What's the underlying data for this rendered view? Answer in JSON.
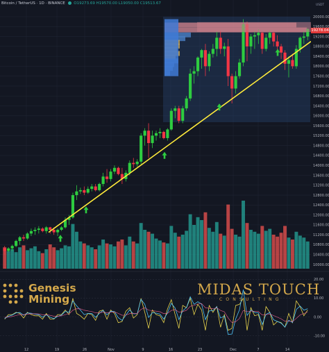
{
  "header": {
    "symbol": "Bitcoin / TetherUS",
    "interval": "1D",
    "exchange": "BINANCE",
    "open": "O19273.69",
    "high": "H19570.00",
    "low": "L19050.00",
    "close": "C19513.67"
  },
  "price_tag": "19278.04",
  "genesis": {
    "line1": "Genesis",
    "line2": "Mining"
  },
  "midas": {
    "title": "MIDAS TOUCH",
    "subtitle": "CONSULTING"
  },
  "colors": {
    "up": "#26a69a",
    "down": "#ef5350",
    "candle_up": "#2ecc40",
    "candle_down": "#f23645",
    "trendline": "#ffeb3b",
    "gold": "#d4a84b",
    "arrow": "#2ecc40"
  },
  "chart_data": {
    "type": "candlestick",
    "title": "Bitcoin / TetherUS, 1D, BINANCE",
    "y_axis": {
      "ticks": [
        "20000.00",
        "19600.00",
        "19200.00",
        "18800.00",
        "18400.00",
        "18000.00",
        "17600.00",
        "17200.00",
        "16800.00",
        "16400.00",
        "16000.00",
        "15600.00",
        "15200.00",
        "14800.00",
        "14400.00",
        "14000.00",
        "13600.00",
        "13200.00",
        "12800.00",
        "12400.00",
        "12000.00",
        "11600.00",
        "11200.00",
        "10800.00",
        "10400.00",
        "10000.00"
      ],
      "range": [
        10000,
        20000
      ]
    },
    "x_axis": {
      "ticks": [
        "12",
        "19",
        "26",
        "Nov",
        "9",
        "16",
        "23",
        "Dec",
        "7",
        "14"
      ]
    },
    "candles": [
      {
        "o": 10650,
        "h": 10750,
        "l": 10400,
        "c": 10550
      },
      {
        "o": 10550,
        "h": 10700,
        "l": 10500,
        "c": 10650
      },
      {
        "o": 10650,
        "h": 10800,
        "l": 10550,
        "c": 10750
      },
      {
        "o": 10750,
        "h": 11000,
        "l": 10700,
        "c": 10950
      },
      {
        "o": 10950,
        "h": 11150,
        "l": 10800,
        "c": 11100
      },
      {
        "o": 11100,
        "h": 11200,
        "l": 10950,
        "c": 11050
      },
      {
        "o": 11050,
        "h": 11300,
        "l": 11000,
        "c": 11250
      },
      {
        "o": 11250,
        "h": 11450,
        "l": 11150,
        "c": 11350
      },
      {
        "o": 11350,
        "h": 11500,
        "l": 11200,
        "c": 11400
      },
      {
        "o": 11400,
        "h": 11550,
        "l": 11250,
        "c": 11450
      },
      {
        "o": 11450,
        "h": 11500,
        "l": 11300,
        "c": 11350
      },
      {
        "o": 11350,
        "h": 11550,
        "l": 11250,
        "c": 11500
      },
      {
        "o": 11500,
        "h": 11520,
        "l": 11250,
        "c": 11400
      },
      {
        "o": 11400,
        "h": 11500,
        "l": 11200,
        "c": 11300
      },
      {
        "o": 11300,
        "h": 11450,
        "l": 11150,
        "c": 11400
      },
      {
        "o": 11400,
        "h": 11550,
        "l": 11350,
        "c": 11500
      },
      {
        "o": 11500,
        "h": 11900,
        "l": 11450,
        "c": 11800
      },
      {
        "o": 11800,
        "h": 12000,
        "l": 11600,
        "c": 11900
      },
      {
        "o": 11900,
        "h": 12900,
        "l": 11850,
        "c": 12800
      },
      {
        "o": 12800,
        "h": 13200,
        "l": 12600,
        "c": 12950
      },
      {
        "o": 12950,
        "h": 13100,
        "l": 12850,
        "c": 13000
      },
      {
        "o": 13000,
        "h": 13150,
        "l": 12800,
        "c": 12900
      },
      {
        "o": 12900,
        "h": 13150,
        "l": 12850,
        "c": 13050
      },
      {
        "o": 13050,
        "h": 13250,
        "l": 12950,
        "c": 13150
      },
      {
        "o": 13150,
        "h": 13250,
        "l": 12950,
        "c": 13000
      },
      {
        "o": 13000,
        "h": 13300,
        "l": 12950,
        "c": 13250
      },
      {
        "o": 13250,
        "h": 13700,
        "l": 13150,
        "c": 13550
      },
      {
        "o": 13550,
        "h": 13850,
        "l": 13300,
        "c": 13450
      },
      {
        "o": 13450,
        "h": 13850,
        "l": 13350,
        "c": 13750
      },
      {
        "o": 13750,
        "h": 14000,
        "l": 13650,
        "c": 13900
      },
      {
        "o": 13900,
        "h": 13950,
        "l": 13600,
        "c": 13650
      },
      {
        "o": 13650,
        "h": 13900,
        "l": 13250,
        "c": 13450
      },
      {
        "o": 13450,
        "h": 13800,
        "l": 13350,
        "c": 13700
      },
      {
        "o": 13700,
        "h": 14200,
        "l": 13600,
        "c": 14100
      },
      {
        "o": 14100,
        "h": 14300,
        "l": 13900,
        "c": 14050
      },
      {
        "o": 14050,
        "h": 14250,
        "l": 13950,
        "c": 14150
      },
      {
        "o": 14150,
        "h": 15300,
        "l": 14050,
        "c": 15200
      },
      {
        "o": 15200,
        "h": 15500,
        "l": 14800,
        "c": 15400
      },
      {
        "o": 15400,
        "h": 15700,
        "l": 14300,
        "c": 14900
      },
      {
        "o": 14900,
        "h": 15400,
        "l": 14700,
        "c": 15200
      },
      {
        "o": 15200,
        "h": 15400,
        "l": 15000,
        "c": 15300
      },
      {
        "o": 15300,
        "h": 15500,
        "l": 15100,
        "c": 15350
      },
      {
        "o": 15350,
        "h": 15400,
        "l": 15050,
        "c": 15100
      },
      {
        "o": 15100,
        "h": 15500,
        "l": 15000,
        "c": 15450
      },
      {
        "o": 15450,
        "h": 16300,
        "l": 15400,
        "c": 16200
      },
      {
        "o": 16200,
        "h": 16400,
        "l": 15900,
        "c": 16300
      },
      {
        "o": 16300,
        "h": 16400,
        "l": 15700,
        "c": 15800
      },
      {
        "o": 15800,
        "h": 16400,
        "l": 15700,
        "c": 16300
      },
      {
        "o": 16300,
        "h": 16800,
        "l": 16200,
        "c": 16700
      },
      {
        "o": 16700,
        "h": 17900,
        "l": 16600,
        "c": 17700
      },
      {
        "o": 17700,
        "h": 18000,
        "l": 17300,
        "c": 17800
      },
      {
        "o": 17800,
        "h": 18400,
        "l": 17600,
        "c": 18350
      },
      {
        "o": 18350,
        "h": 18700,
        "l": 17900,
        "c": 18650
      },
      {
        "o": 18650,
        "h": 18900,
        "l": 17600,
        "c": 18000
      },
      {
        "o": 18000,
        "h": 18600,
        "l": 17800,
        "c": 18500
      },
      {
        "o": 18500,
        "h": 18900,
        "l": 18350,
        "c": 18700
      },
      {
        "o": 18700,
        "h": 19400,
        "l": 18400,
        "c": 19150
      },
      {
        "o": 19150,
        "h": 19450,
        "l": 18500,
        "c": 18700
      },
      {
        "o": 18700,
        "h": 18950,
        "l": 18400,
        "c": 18800
      },
      {
        "o": 18800,
        "h": 19100,
        "l": 17200,
        "c": 17600
      },
      {
        "o": 17600,
        "h": 17700,
        "l": 16500,
        "c": 17100
      },
      {
        "o": 17100,
        "h": 17800,
        "l": 16900,
        "c": 17600
      },
      {
        "o": 17600,
        "h": 18300,
        "l": 17500,
        "c": 18150
      },
      {
        "o": 18150,
        "h": 19900,
        "l": 18000,
        "c": 19700
      },
      {
        "o": 19700,
        "h": 19800,
        "l": 18200,
        "c": 18800
      },
      {
        "o": 18800,
        "h": 19300,
        "l": 18500,
        "c": 19200
      },
      {
        "o": 19200,
        "h": 19400,
        "l": 18700,
        "c": 19250
      },
      {
        "o": 19250,
        "h": 19500,
        "l": 18900,
        "c": 19350
      },
      {
        "o": 19350,
        "h": 19400,
        "l": 18500,
        "c": 18700
      },
      {
        "o": 18700,
        "h": 19300,
        "l": 18600,
        "c": 19150
      },
      {
        "o": 19150,
        "h": 19450,
        "l": 18900,
        "c": 19350
      },
      {
        "o": 19350,
        "h": 19400,
        "l": 18800,
        "c": 19000
      },
      {
        "o": 19000,
        "h": 19250,
        "l": 18650,
        "c": 18800
      },
      {
        "o": 18800,
        "h": 18900,
        "l": 18300,
        "c": 18550
      },
      {
        "o": 18550,
        "h": 18650,
        "l": 17850,
        "c": 18100
      },
      {
        "o": 18100,
        "h": 18400,
        "l": 17550,
        "c": 18250
      },
      {
        "o": 18250,
        "h": 18500,
        "l": 17900,
        "c": 18000
      },
      {
        "o": 18000,
        "h": 18850,
        "l": 17900,
        "c": 18700
      },
      {
        "o": 18700,
        "h": 19200,
        "l": 18550,
        "c": 19150
      },
      {
        "o": 19150,
        "h": 19400,
        "l": 18900,
        "c": 19200
      },
      {
        "o": 19200,
        "h": 19550,
        "l": 19050,
        "c": 19500
      }
    ],
    "volume": [
      22,
      18,
      20,
      17,
      22,
      24,
      19,
      21,
      23,
      18,
      16,
      20,
      25,
      22,
      19,
      21,
      24,
      23,
      46,
      38,
      28,
      26,
      24,
      22,
      20,
      24,
      30,
      26,
      25,
      23,
      28,
      30,
      24,
      33,
      28,
      26,
      47,
      40,
      38,
      36,
      31,
      29,
      27,
      26,
      44,
      37,
      33,
      35,
      39,
      56,
      45,
      53,
      50,
      58,
      42,
      38,
      48,
      36,
      34,
      66,
      41,
      35,
      33,
      70,
      47,
      40,
      38,
      36,
      44,
      39,
      41,
      35,
      33,
      37,
      44,
      32,
      30,
      38,
      34,
      32,
      28
    ],
    "indicator": {
      "ticks": [
        "20.00",
        "10.00",
        "0.00",
        "-10.00"
      ],
      "range": [
        -15,
        22
      ]
    }
  }
}
